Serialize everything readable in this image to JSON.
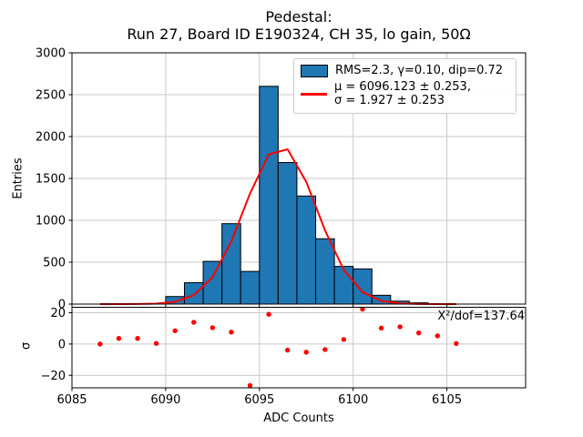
{
  "title": {
    "line1": "Pedestal:",
    "line2": "Run 27, Board ID E190324, CH 35, lo gain, 50Ω"
  },
  "legend": {
    "hist_label": "RMS=2.3, γ=0.10, dip=0.72",
    "fit_label_line1": "μ = 6096.123 ± 0.253,",
    "fit_label_line2": "σ = 1.927 ± 0.253"
  },
  "colors": {
    "bar_fill": "#1f77b4",
    "bar_edge": "#000000",
    "fit_line": "#ff0000",
    "residual_marker": "#ff0000",
    "grid": "#c8c8c8",
    "spine": "#000000"
  },
  "chart_data": {
    "type": "histogram+fit-line+residual-scatter",
    "xlabel": "ADC Counts",
    "xlim": [
      6085,
      6109.2
    ],
    "xticks": [
      6085,
      6090,
      6095,
      6100,
      6105
    ],
    "grid": true,
    "top_panel": {
      "ylabel": "Entries",
      "ylim": [
        0,
        3000
      ],
      "yticks": [
        0,
        500,
        1000,
        1500,
        2000,
        2500,
        3000
      ],
      "histogram": {
        "bin_width": 1,
        "bin_left_edges": [
          6090,
          6091,
          6092,
          6093,
          6094,
          6095,
          6096,
          6097,
          6098,
          6099,
          6100,
          6101,
          6102,
          6103
        ],
        "counts": [
          90,
          255,
          510,
          960,
          390,
          2600,
          1690,
          1290,
          780,
          450,
          420,
          105,
          35,
          15
        ]
      },
      "fit_curve": {
        "mu": 6096.123,
        "mu_err": 0.253,
        "sigma": 1.927,
        "sigma_err": 0.253,
        "peak": 1848,
        "x": [
          6086.5,
          6087.5,
          6088.5,
          6089.5,
          6090.5,
          6091.5,
          6092.5,
          6093.5,
          6094.5,
          6095.5,
          6096.5,
          6097.5,
          6098.5,
          6099.5,
          6100.5,
          6101.5,
          6102.5,
          6103.5,
          6104.5,
          6105.5
        ],
        "y": [
          0,
          0.1,
          0.8,
          5,
          27,
          106,
          322,
          746,
          1322,
          1788,
          1848,
          1460,
          880,
          406,
          143,
          38,
          8,
          1,
          0.1,
          0
        ]
      }
    },
    "bottom_panel": {
      "ylabel": "σ",
      "ylim": [
        -28,
        23.5
      ],
      "yticks": [
        20,
        0,
        -20
      ],
      "annotation": "Χ²/dof=137.64",
      "residuals": {
        "x": [
          6086.5,
          6087.5,
          6088.5,
          6089.5,
          6090.5,
          6091.5,
          6092.5,
          6093.5,
          6094.5,
          6095.5,
          6096.5,
          6097.5,
          6098.5,
          6099.5,
          6100.5,
          6101.5,
          6102.5,
          6103.5,
          6104.5,
          6105.5
        ],
        "sigma": [
          0.0,
          3.6,
          3.6,
          0.4,
          8.5,
          13.9,
          10.4,
          7.6,
          -26.5,
          19.0,
          -3.9,
          -5.2,
          -3.5,
          2.9,
          22.3,
          10.2,
          11.0,
          7.1,
          5.2,
          0.3
        ]
      }
    }
  }
}
